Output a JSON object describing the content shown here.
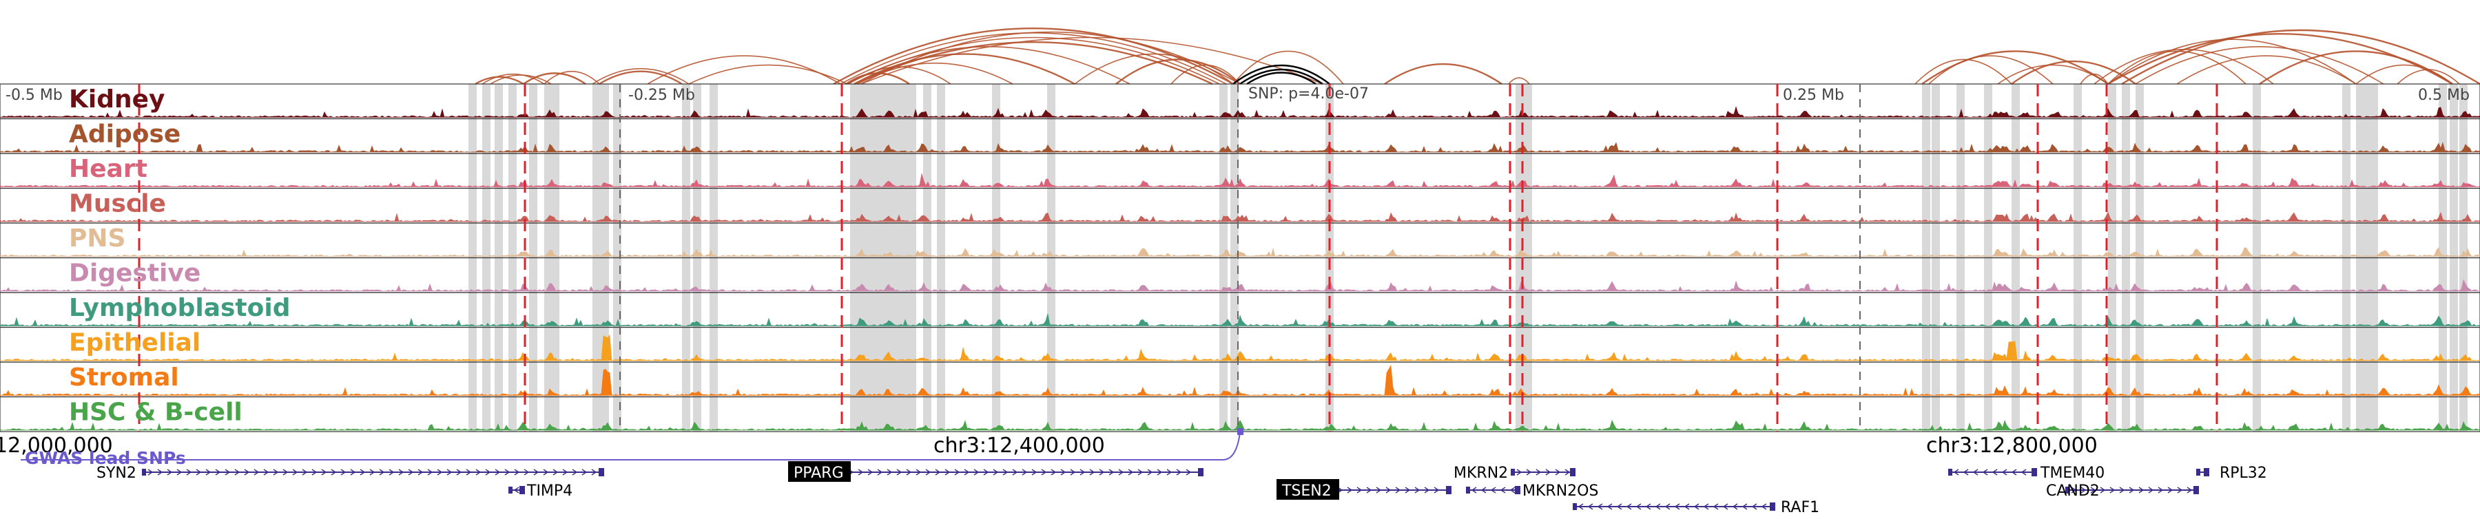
{
  "tracks": [
    {
      "label": "Kidney",
      "color": "#6b0f14",
      "bold": true
    },
    {
      "label": "Adipose",
      "color": "#a4552e"
    },
    {
      "label": "Heart",
      "color": "#d8637a"
    },
    {
      "label": "Muscle",
      "color": "#c8605a"
    },
    {
      "label": "PNS",
      "color": "#e2bc94"
    },
    {
      "label": "Digestive",
      "color": "#c98ab0"
    },
    {
      "label": "Lymphoblastoid",
      "color": "#3f9b7e"
    },
    {
      "label": "Epithelial",
      "color": "#f5a11f"
    },
    {
      "label": "Stromal",
      "color": "#f47a13"
    },
    {
      "label": "HSC & B-cell",
      "color": "#4aa54a"
    }
  ],
  "offset_labels": [
    "-0.5 Mb",
    "-0.25 Mb",
    "0.25 Mb",
    "0.5 Mb"
  ],
  "snp_label": "SNP: p=4.0e-07",
  "coords": {
    "left": "12,000,000",
    "mid": "chr3:12,400,000",
    "right": "chr3:12,800,000"
  },
  "gwas_label": "GWAS lead SNPs",
  "genes": [
    {
      "name": "SYN2",
      "strand": "+",
      "highlight": false
    },
    {
      "name": "TIMP4",
      "strand": "-",
      "highlight": false
    },
    {
      "name": "PPARG",
      "strand": "+",
      "highlight": true
    },
    {
      "name": "TSEN2",
      "strand": "+",
      "highlight": true
    },
    {
      "name": "MKRN2",
      "strand": "+",
      "highlight": false
    },
    {
      "name": "MKRN2OS",
      "strand": "-",
      "highlight": false
    },
    {
      "name": "RAF1",
      "strand": "-",
      "highlight": false
    },
    {
      "name": "TMEM40",
      "strand": "-",
      "highlight": false
    },
    {
      "name": "CAND2",
      "strand": "+",
      "highlight": false
    },
    {
      "name": "RPL32",
      "strand": "-",
      "highlight": false
    }
  ],
  "colors": {
    "arc": "#b5522c",
    "arc_black": "#000000",
    "red_line": "#e0202a",
    "grey_band": "#d9d9d9",
    "gene": "#3a2c8c",
    "gwas": "#6a5acd"
  }
}
